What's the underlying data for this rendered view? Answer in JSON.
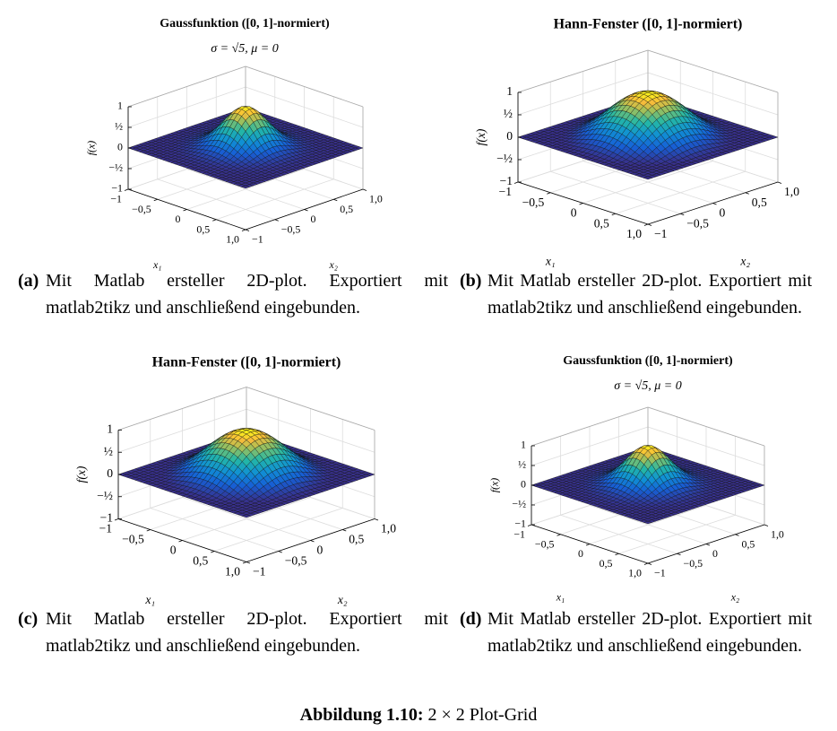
{
  "panels": [
    {
      "title": "Gaussfunktion ([0, 1]-normiert)",
      "subtitle": "σ = √5, μ = 0",
      "z_label": "f(x)",
      "z_ticks": [
        "1",
        "½",
        "0",
        "−½",
        "−1"
      ],
      "x1_ticks": [
        "−1",
        "−0,5",
        "0",
        "0,5",
        "1,0"
      ],
      "x2_ticks": [
        "−1",
        "−0,5",
        "0",
        "0,5",
        "1,0"
      ],
      "x1_label": "x₁",
      "x2_label": "x₂",
      "caption_label": "(a)",
      "caption_text": "Mit Matlab ersteller 2D-plot. Exportiert mit matlab2tikz und anschließend eingebunden."
    },
    {
      "title": "Hann-Fenster ([0, 1]-normiert)",
      "z_label": "f(x)",
      "z_ticks": [
        "1",
        "½",
        "0",
        "−½",
        "−1"
      ],
      "x1_ticks": [
        "−1",
        "−0,5",
        "0",
        "0,5",
        "1,0"
      ],
      "x2_ticks": [
        "−1",
        "−0,5",
        "0",
        "0,5",
        "1,0"
      ],
      "x1_label": "x₁",
      "x2_label": "x₂",
      "caption_label": "(b)",
      "caption_text": "Mit Matlab ersteller 2D-plot. Exportiert mit matlab2tikz und anschließend eingebunden."
    },
    {
      "title": "Hann-Fenster ([0, 1]-normiert)",
      "z_label": "f(x)",
      "z_ticks": [
        "1",
        "½",
        "0",
        "−½",
        "−1"
      ],
      "x1_ticks": [
        "−1",
        "−0,5",
        "0",
        "0,5",
        "1,0"
      ],
      "x2_ticks": [
        "−1",
        "−0,5",
        "0",
        "0,5",
        "1,0"
      ],
      "x1_label": "x₁",
      "x2_label": "x₂",
      "caption_label": "(c)",
      "caption_text": "Mit Matlab ersteller 2D-plot. Exportiert mit matlab2tikz und anschließend eingebunden."
    },
    {
      "title": "Gaussfunktion ([0, 1]-normiert)",
      "subtitle": "σ = √5, μ = 0",
      "z_label": "f(x)",
      "z_ticks": [
        "1",
        "½",
        "0",
        "−½",
        "−1"
      ],
      "x1_ticks": [
        "−1",
        "−0,5",
        "0",
        "0,5",
        "1,0"
      ],
      "x2_ticks": [
        "−1",
        "−0,5",
        "0",
        "0,5",
        "1,0"
      ],
      "x1_label": "x₁",
      "x2_label": "x₂",
      "caption_label": "(d)",
      "caption_text": "Mit Matlab ersteller 2D-plot. Exportiert mit matlab2tikz und anschließend eingebunden."
    }
  ],
  "figure_caption": {
    "label": "Abbildung 1.10:",
    "text": "2 × 2 Plot-Grid"
  }
}
